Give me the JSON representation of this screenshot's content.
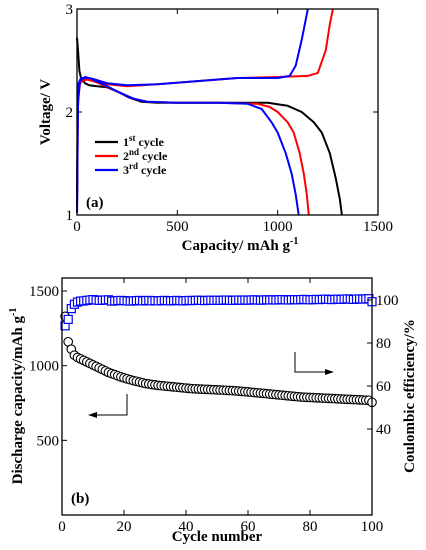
{
  "chart_data": [
    {
      "type": "line",
      "panel_label": "(a)",
      "xlabel": "Capacity/ mAh g",
      "xlabel_sup": "-1",
      "ylabel": "Voltage/ V",
      "xlim": [
        0,
        1500
      ],
      "ylim": [
        1,
        3
      ],
      "xticks": [
        0,
        500,
        1000,
        1500
      ],
      "yticks": [
        1,
        2,
        3
      ],
      "legend_position": "lower-left",
      "series": [
        {
          "legend_num": "1",
          "legend_sup": "st",
          "legend_rest": " cycle",
          "color": "#000000",
          "discharge": [
            [
              0,
              2.72
            ],
            [
              5,
              2.6
            ],
            [
              12,
              2.4
            ],
            [
              20,
              2.33
            ],
            [
              40,
              2.28
            ],
            [
              60,
              2.26
            ],
            [
              100,
              2.25
            ],
            [
              150,
              2.24
            ],
            [
              200,
              2.2
            ],
            [
              260,
              2.14
            ],
            [
              320,
              2.1
            ],
            [
              400,
              2.09
            ],
            [
              600,
              2.09
            ],
            [
              800,
              2.09
            ],
            [
              950,
              2.09
            ],
            [
              1050,
              2.06
            ],
            [
              1120,
              2.0
            ],
            [
              1180,
              1.9
            ],
            [
              1220,
              1.8
            ],
            [
              1260,
              1.6
            ],
            [
              1290,
              1.35
            ],
            [
              1310,
              1.15
            ],
            [
              1320,
              1.0
            ]
          ],
          "charge": []
        },
        {
          "legend_num": "2",
          "legend_sup": "nd",
          "legend_rest": " cycle",
          "color": "#ff0000",
          "discharge": [
            [
              0,
              1.05
            ],
            [
              3,
              1.9
            ],
            [
              8,
              2.25
            ],
            [
              20,
              2.3
            ],
            [
              60,
              2.32
            ],
            [
              120,
              2.27
            ],
            [
              200,
              2.2
            ],
            [
              280,
              2.13
            ],
            [
              350,
              2.1
            ],
            [
              500,
              2.09
            ],
            [
              700,
              2.09
            ],
            [
              900,
              2.08
            ],
            [
              960,
              2.05
            ],
            [
              1000,
              2.0
            ],
            [
              1050,
              1.9
            ],
            [
              1080,
              1.8
            ],
            [
              1110,
              1.6
            ],
            [
              1130,
              1.4
            ],
            [
              1145,
              1.2
            ],
            [
              1155,
              1.0
            ]
          ],
          "charge": [
            [
              0,
              1.05
            ],
            [
              5,
              2.1
            ],
            [
              15,
              2.28
            ],
            [
              40,
              2.32
            ],
            [
              80,
              2.3
            ],
            [
              150,
              2.27
            ],
            [
              250,
              2.25
            ],
            [
              400,
              2.27
            ],
            [
              600,
              2.3
            ],
            [
              800,
              2.33
            ],
            [
              1000,
              2.34
            ],
            [
              1150,
              2.35
            ],
            [
              1200,
              2.38
            ],
            [
              1240,
              2.6
            ],
            [
              1260,
              2.85
            ],
            [
              1275,
              3.0
            ]
          ]
        },
        {
          "legend_num": "3",
          "legend_sup": "rd",
          "legend_rest": " cycle",
          "color": "#0000ff",
          "discharge": [
            [
              0,
              1.02
            ],
            [
              3,
              1.9
            ],
            [
              8,
              2.28
            ],
            [
              20,
              2.33
            ],
            [
              60,
              2.33
            ],
            [
              120,
              2.28
            ],
            [
              200,
              2.2
            ],
            [
              280,
              2.13
            ],
            [
              350,
              2.1
            ],
            [
              500,
              2.09
            ],
            [
              700,
              2.09
            ],
            [
              850,
              2.08
            ],
            [
              920,
              2.03
            ],
            [
              970,
              1.9
            ],
            [
              1000,
              1.8
            ],
            [
              1040,
              1.6
            ],
            [
              1070,
              1.4
            ],
            [
              1090,
              1.2
            ],
            [
              1105,
              1.0
            ]
          ],
          "charge": [
            [
              0,
              1.02
            ],
            [
              5,
              2.1
            ],
            [
              15,
              2.3
            ],
            [
              40,
              2.34
            ],
            [
              80,
              2.32
            ],
            [
              150,
              2.28
            ],
            [
              250,
              2.26
            ],
            [
              400,
              2.27
            ],
            [
              600,
              2.3
            ],
            [
              800,
              2.33
            ],
            [
              1000,
              2.33
            ],
            [
              1060,
              2.35
            ],
            [
              1090,
              2.45
            ],
            [
              1120,
              2.7
            ],
            [
              1140,
              2.9
            ],
            [
              1150,
              3.0
            ]
          ]
        }
      ]
    },
    {
      "type": "scatter",
      "panel_label": "(b)",
      "xlabel": "Cycle number",
      "ylabel": "Discharge capacity/mAh g",
      "ylabel_sup": "-1",
      "y2label": "Coulombic efficiency/%",
      "xlim": [
        0,
        100
      ],
      "ylim": [
        0,
        1500
      ],
      "y2lim": [
        0,
        100
      ],
      "xticks": [
        0,
        20,
        40,
        60,
        80,
        100
      ],
      "yticks": [
        500,
        1000,
        1500
      ],
      "y2ticks": [
        40,
        60,
        80,
        100
      ],
      "series": [
        {
          "color": "#000000",
          "marker": "circle",
          "axis": "left",
          "x": [
            1,
            2,
            3,
            4,
            5,
            6,
            7,
            8,
            9,
            10,
            11,
            12,
            13,
            14,
            15,
            16,
            17,
            18,
            19,
            20,
            21,
            22,
            23,
            24,
            25,
            26,
            27,
            28,
            29,
            30,
            31,
            32,
            33,
            34,
            35,
            36,
            37,
            38,
            39,
            40,
            41,
            42,
            43,
            44,
            45,
            46,
            47,
            48,
            49,
            50,
            51,
            52,
            53,
            54,
            55,
            56,
            57,
            58,
            59,
            60,
            61,
            62,
            63,
            64,
            65,
            66,
            67,
            68,
            69,
            70,
            71,
            72,
            73,
            74,
            75,
            76,
            77,
            78,
            79,
            80,
            81,
            82,
            83,
            84,
            85,
            86,
            87,
            88,
            89,
            90,
            91,
            92,
            93,
            94,
            95,
            96,
            97,
            98,
            99,
            100
          ],
          "values": [
            1330,
            1160,
            1110,
            1070,
            1055,
            1045,
            1035,
            1025,
            1015,
            1005,
            995,
            985,
            975,
            965,
            955,
            947,
            940,
            932,
            925,
            918,
            912,
            906,
            900,
            895,
            890,
            885,
            880,
            877,
            874,
            871,
            868,
            866,
            864,
            862,
            860,
            858,
            856,
            854,
            852,
            850,
            848,
            846,
            845,
            844,
            843,
            842,
            841,
            840,
            839,
            838,
            837,
            836,
            835,
            834,
            833,
            832,
            830,
            828,
            826,
            824,
            822,
            820,
            818,
            816,
            814,
            812,
            810,
            808,
            806,
            804,
            802,
            800,
            798,
            796,
            794,
            792,
            790,
            789,
            788,
            787,
            786,
            785,
            784,
            783,
            782,
            781,
            780,
            779,
            778,
            777,
            776,
            775,
            774,
            773,
            772,
            771,
            770,
            769,
            768,
            755
          ]
        },
        {
          "color": "#0000ff",
          "marker": "square",
          "axis": "right",
          "x": [
            1,
            2,
            3,
            4,
            5,
            6,
            7,
            8,
            9,
            10,
            11,
            12,
            13,
            14,
            15,
            16,
            17,
            18,
            19,
            20,
            21,
            22,
            23,
            24,
            25,
            26,
            27,
            28,
            29,
            30,
            31,
            32,
            33,
            34,
            35,
            36,
            37,
            38,
            39,
            40,
            41,
            42,
            43,
            44,
            45,
            46,
            47,
            48,
            49,
            50,
            51,
            52,
            53,
            54,
            55,
            56,
            57,
            58,
            59,
            60,
            61,
            62,
            63,
            64,
            65,
            66,
            67,
            68,
            69,
            70,
            71,
            72,
            73,
            74,
            75,
            76,
            77,
            78,
            79,
            80,
            81,
            82,
            83,
            84,
            85,
            86,
            87,
            88,
            89,
            90,
            91,
            92,
            93,
            94,
            95,
            96,
            97,
            98,
            99,
            100
          ],
          "values": [
            88,
            91,
            96,
            98,
            99,
            99.5,
            99.6,
            99.8,
            100,
            100.2,
            100,
            99.8,
            99.9,
            100,
            100.1,
            99.5,
            99.6,
            99.7,
            99.8,
            99.7,
            99.6,
            99.5,
            99.6,
            99.7,
            99.8,
            99.6,
            99.7,
            99.8,
            99.6,
            99.7,
            99.6,
            99.7,
            99.8,
            99.7,
            99.6,
            99.7,
            99.8,
            99.7,
            99.6,
            99.7,
            99.8,
            99.7,
            99.8,
            99.9,
            99.8,
            99.7,
            99.8,
            99.9,
            99.8,
            99.9,
            99.8,
            99.9,
            100,
            99.9,
            99.8,
            99.9,
            100,
            99.9,
            100,
            99.9,
            100,
            100.1,
            100,
            99.9,
            100,
            100.1,
            100,
            100.1,
            100,
            100.1,
            100.2,
            100.1,
            100,
            100.1,
            100.2,
            100.1,
            100.2,
            100.3,
            100.2,
            100.1,
            100.2,
            100.3,
            100.2,
            100.3,
            100.4,
            100.3,
            100.2,
            100.3,
            100.4,
            100.3,
            100.4,
            100.5,
            100.4,
            100.3,
            100.4,
            100.5,
            100.4,
            100.5,
            100.6,
            99.2
          ]
        }
      ]
    }
  ]
}
